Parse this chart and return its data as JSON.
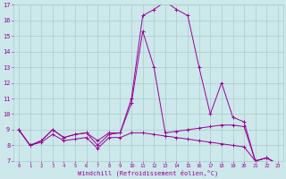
{
  "xlabel": "Windchill (Refroidissement éolien,°C)",
  "background_color": "#cce8ea",
  "grid_color": "#aacccc",
  "line_color": "#990099",
  "xmin": 0,
  "xmax": 23,
  "ymin": 7,
  "ymax": 17,
  "x_ticks": [
    0,
    1,
    2,
    3,
    4,
    5,
    6,
    7,
    8,
    9,
    10,
    11,
    12,
    13,
    14,
    15,
    16,
    17,
    18,
    19,
    20,
    21,
    22,
    23
  ],
  "y_ticks": [
    7,
    8,
    9,
    10,
    11,
    12,
    13,
    14,
    15,
    16,
    17
  ],
  "curves": [
    [
      9.0,
      8.0,
      8.3,
      9.0,
      8.5,
      8.7,
      8.8,
      8.0,
      8.7,
      8.8,
      11.0,
      16.3,
      16.7,
      17.2,
      16.7,
      16.3,
      13.0,
      10.0,
      12.0,
      9.8,
      9.5,
      7.0,
      7.2,
      6.8
    ],
    [
      9.0,
      8.0,
      8.3,
      9.0,
      8.5,
      8.7,
      8.8,
      8.3,
      8.8,
      8.8,
      10.7,
      15.3,
      13.0,
      8.8,
      8.9,
      9.0,
      9.1,
      9.2,
      9.3,
      9.3,
      9.2,
      7.0,
      7.2,
      6.8
    ],
    [
      9.0,
      8.0,
      8.2,
      8.7,
      8.3,
      8.4,
      8.5,
      7.8,
      8.5,
      8.5,
      8.8,
      8.8,
      8.7,
      8.6,
      8.5,
      8.4,
      8.3,
      8.2,
      8.1,
      8.0,
      7.9,
      7.0,
      7.2,
      6.8
    ]
  ]
}
